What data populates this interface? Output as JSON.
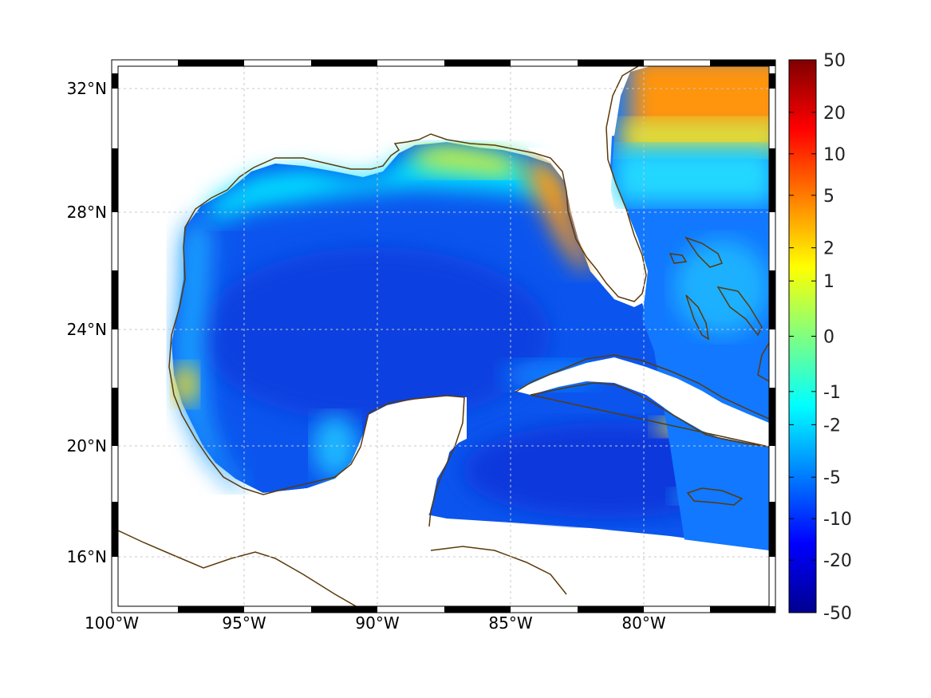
{
  "chart_data": {
    "type": "heatmap",
    "title": "",
    "xlabel": "",
    "ylabel": "",
    "xlim": [
      -100,
      -75
    ],
    "ylim": [
      14.5,
      33
    ],
    "x_ticks": [
      {
        "value": -100,
        "label": "100°W"
      },
      {
        "value": -95,
        "label": "95°W"
      },
      {
        "value": -90,
        "label": "90°W"
      },
      {
        "value": -85,
        "label": "85°W"
      },
      {
        "value": -80,
        "label": "80°W"
      }
    ],
    "y_ticks": [
      {
        "value": 32,
        "label": "32°N"
      },
      {
        "value": 28,
        "label": "28°N"
      },
      {
        "value": 24,
        "label": "24°N"
      },
      {
        "value": 20,
        "label": "20°N"
      },
      {
        "value": 16,
        "label": "16°N"
      }
    ],
    "grid": true,
    "colorbar": {
      "scale": "symmetric-log",
      "colormap": "jet",
      "ticks": [
        "50",
        "20",
        "10",
        "5",
        "2",
        "1",
        "0",
        "-1",
        "-2",
        "-5",
        "-10",
        "-20",
        "-50"
      ],
      "tick_positions": [
        1.0,
        0.905,
        0.83,
        0.755,
        0.66,
        0.6,
        0.5,
        0.4,
        0.34,
        0.245,
        0.17,
        0.095,
        0.0
      ]
    },
    "field_regions": [
      {
        "region": "Gulf of Mexico interior",
        "value": -8
      },
      {
        "region": "Northern Gulf shelf (Louisiana/Mississippi)",
        "value": 1
      },
      {
        "region": "West Florida shelf",
        "value": 4
      },
      {
        "region": "Texas/Mexico coastal strip",
        "value": -3
      },
      {
        "region": "Tamaulipas coast near 22N",
        "value": 3
      },
      {
        "region": "Caribbean Sea",
        "value": -10
      },
      {
        "region": "Atlantic off southeast US (north of 30N)",
        "value": 6
      },
      {
        "region": "Atlantic near Bahamas",
        "value": -4
      },
      {
        "region": "Cuba south shelf near 20.5N 78W",
        "value": 2
      }
    ],
    "coastline_color": "#5a3a0a"
  }
}
